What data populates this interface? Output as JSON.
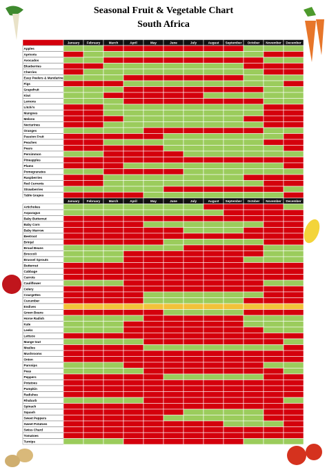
{
  "header": {
    "title": "Seasonal Fruit & Vegetable Chart",
    "subtitle": "South Africa"
  },
  "months": [
    "January",
    "February",
    "March",
    "April",
    "May",
    "June",
    "July",
    "August",
    "September",
    "October",
    "November",
    "December"
  ],
  "palette": {
    "R": "#d4000c",
    "G": "#9bcc5c",
    "Y": "#f2c23a"
  },
  "fruit": {
    "rows": [
      {
        "name": "Apples",
        "season": "GGRRRRRRRGGG"
      },
      {
        "name": "Apricots",
        "season": "RGGGGGGGGGRR"
      },
      {
        "name": "Avocados",
        "season": "GGRRRRRRRRGG"
      },
      {
        "name": "Blueberries",
        "season": "RRGGGGGGGRRR"
      },
      {
        "name": "Cherries",
        "season": "RGGGGGGGGGRR"
      },
      {
        "name": "Easy Peelers & Mandarines",
        "season": "GGGRRRRRRGGG"
      },
      {
        "name": "Figs",
        "season": "RRRGGGGGGGGR"
      },
      {
        "name": "Grapefruit",
        "season": "GGGRRRRRRRGG"
      },
      {
        "name": "Kiwi",
        "season": "GGRRRRRGGGGG"
      },
      {
        "name": "Lemons",
        "season": "GGGRRRRRRRGG"
      },
      {
        "name": "Litchi's",
        "season": "RRGGGGGGGGRR"
      },
      {
        "name": "Mangoes",
        "season": "RRGGGGGGGGRR"
      },
      {
        "name": "Melons",
        "season": "RRRGGGGGGRRR"
      },
      {
        "name": "Nectarines",
        "season": "RRGGGGGGGGRR"
      },
      {
        "name": "Oranges",
        "season": "GGGGRRRRRRGG"
      },
      {
        "name": "Passion Fruit",
        "season": "RRRRRGGGGGGR"
      },
      {
        "name": "Peaches",
        "season": "RRGGGGGGGGRR"
      },
      {
        "name": "Pears",
        "season": "RRRRRGGGGGGR"
      },
      {
        "name": "Persimmon",
        "season": "GGRRRRGGGGGG"
      },
      {
        "name": "Pineapples",
        "season": "RRRRRRRRRRRR"
      },
      {
        "name": "Plums",
        "season": "RRRGGGGGGGGR"
      },
      {
        "name": "Pomegranates",
        "season": "GGRRRRGGGGGG"
      },
      {
        "name": "Raspberries",
        "season": "RRGGGGGGGRRR"
      },
      {
        "name": "Red Currents",
        "season": "RRGGGGGGGGRR"
      },
      {
        "name": "Strawberries",
        "season": "GGGGGRRRRRRG"
      },
      {
        "name": "Table Grapes",
        "season": "RRRRGGGGGGGR"
      }
    ]
  },
  "vegetables": {
    "rows": [
      {
        "name": "Artichokes",
        "season": "GGGGGGGRRRRG"
      },
      {
        "name": "Asparagus",
        "season": "GGGGGGGGRRRR"
      },
      {
        "name": "Baby Butternut",
        "season": "RRRRRRRRRRRR"
      },
      {
        "name": "Baby Corn",
        "season": "RRRRGGGGGGRR"
      },
      {
        "name": "Baby Marrow",
        "season": "RRRRRRGGGRRR"
      },
      {
        "name": "Beetroot",
        "season": "RRRRRRRRRRRR"
      },
      {
        "name": "Brinjal",
        "season": "RRRRRGGGGGRR"
      },
      {
        "name": "Broad Beans",
        "season": "GGGGGGRRRRGG"
      },
      {
        "name": "Broccoli",
        "season": "GGGRRRRRRRGG"
      },
      {
        "name": "Brussel Sprouts",
        "season": "GGGRRRRRRGGG"
      },
      {
        "name": "Butternut",
        "season": "RRRRRRRRRRRR"
      },
      {
        "name": "Cabbage",
        "season": "RRRRRRRRRRRR"
      },
      {
        "name": "Carrots",
        "season": "RRRRRRRRRRRR"
      },
      {
        "name": "Cauliflower",
        "season": "GGGRRRRRRRGG"
      },
      {
        "name": "Celery",
        "season": "RRRRRRRRRRRR"
      },
      {
        "name": "Courgettes",
        "season": "RRRRGGGGGGRR"
      },
      {
        "name": "Cucumber",
        "season": "RRRRGGGGGRRR"
      },
      {
        "name": "Endives",
        "season": "YYYYYYYYYYYY"
      },
      {
        "name": "Green Beans",
        "season": "RRRRRGGGGRRR"
      },
      {
        "name": "Horse Radish",
        "season": "GGGGRRRRRGGG"
      },
      {
        "name": "Kale",
        "season": "GGGRRRRRRGGG"
      },
      {
        "name": "Leeks",
        "season": "GGGRRRRRRRGG"
      },
      {
        "name": "Lettuce",
        "season": "RRRRRRRRRRRR"
      },
      {
        "name": "Mange tout",
        "season": "GGGGRRRRRRRG"
      },
      {
        "name": "Mealies",
        "season": "RRRRGGGGGGGR"
      },
      {
        "name": "Mushrooms",
        "season": "RRRRRRRRRRRR"
      },
      {
        "name": "Onion",
        "season": "RRRRRRRRRRRR"
      },
      {
        "name": "Parsnips",
        "season": "GGGRRRRRRRGG"
      },
      {
        "name": "Peas",
        "season": "GGGGRRRRRRRG"
      },
      {
        "name": "Peppers",
        "season": "RRRRRGGGGGRR"
      },
      {
        "name": "Potatoes",
        "season": "RRRRRRRRRRRR"
      },
      {
        "name": "Pumpkin",
        "season": "RRRRRRRRRRRR"
      },
      {
        "name": "Radishes",
        "season": "RRRRRRRRRRRR"
      },
      {
        "name": "Rhubarb",
        "season": "GGGGRRRRRRRG"
      },
      {
        "name": "Spinach",
        "season": "RRRRRRRRRRRR"
      },
      {
        "name": "Squash",
        "season": "RRRRRRGGGGRR"
      },
      {
        "name": "Sweet Peppers",
        "season": "RRRRRGGGGGRR"
      },
      {
        "name": "Sweet Potatoes",
        "season": "RRRRRRRRGGGR"
      },
      {
        "name": "Swiss Chard",
        "season": "RRRRRRRRRRRR"
      },
      {
        "name": "Tomatoes",
        "season": "RRRRRRRRRRRR"
      },
      {
        "name": "Turnips",
        "season": "GGGRRRRRRGGG"
      }
    ]
  }
}
